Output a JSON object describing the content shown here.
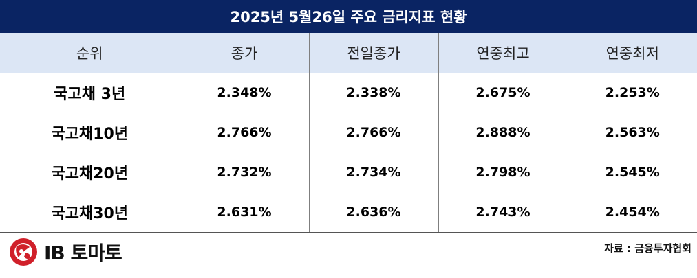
{
  "title": "2025년 5월26일 주요 금리지표 현황",
  "table": {
    "headers": [
      "순위",
      "종가",
      "전일종가",
      "연중최고",
      "연중최저"
    ],
    "rows": [
      [
        "국고채 3년",
        "2.348%",
        "2.338%",
        "2.675%",
        "2.253%"
      ],
      [
        "국고채10년",
        "2.766%",
        "2.766%",
        "2.888%",
        "2.563%"
      ],
      [
        "국고채20년",
        "2.732%",
        "2.734%",
        "2.798%",
        "2.545%"
      ],
      [
        "국고채30년",
        "2.631%",
        "2.636%",
        "2.743%",
        "2.454%"
      ]
    ]
  },
  "footer": {
    "logo_text": "IB 토마토",
    "source": "자료 : 금융투자협회"
  },
  "colors": {
    "title_bg": "#0a2463",
    "header_bg": "#dce6f5",
    "logo_red": "#d0202a"
  },
  "icons": {
    "logo": "ib-tomato-logo-icon"
  }
}
